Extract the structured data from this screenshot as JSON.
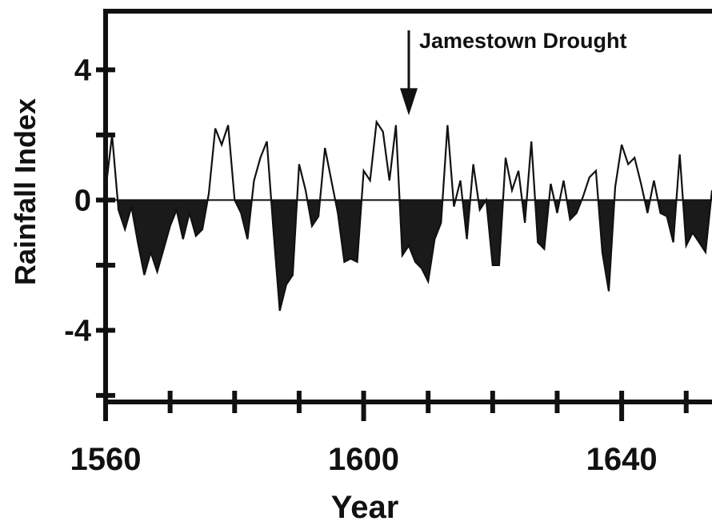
{
  "chart_data": {
    "type": "area",
    "title": "",
    "xlabel": "Year",
    "ylabel": "Rainfall Index",
    "xlim": [
      1560,
      1654
    ],
    "ylim": [
      -6.2,
      5.8
    ],
    "x_ticks": [
      1560,
      1600,
      1640
    ],
    "y_ticks": [
      4,
      0,
      -4
    ],
    "x_minor_ticks": [
      1570,
      1580,
      1590,
      1610,
      1620,
      1630,
      1650
    ],
    "y_minor_ticks": [
      2,
      -2,
      -6
    ],
    "zero_line": true,
    "fill_below_zero": true,
    "fill_color": "#1a1a1a",
    "line_color": "#111111",
    "annotation": {
      "text": "Jamestown Drought",
      "x": 1607,
      "y_arrow_tip": 2.6
    },
    "series": [
      {
        "x": [
          1560,
          1561,
          1562,
          1563,
          1564,
          1565,
          1566,
          1567,
          1568,
          1569,
          1570,
          1571,
          1572,
          1573,
          1574,
          1575,
          1576,
          1577,
          1578,
          1579,
          1580,
          1581,
          1582,
          1583,
          1584,
          1585,
          1586,
          1587,
          1588,
          1589,
          1590,
          1591,
          1592,
          1593,
          1594,
          1595,
          1596,
          1597,
          1598,
          1599,
          1600,
          1601,
          1602,
          1603,
          1604,
          1605,
          1606,
          1607,
          1608,
          1609,
          1610,
          1611,
          1612,
          1613,
          1614,
          1615,
          1616,
          1617,
          1618,
          1619,
          1620,
          1621,
          1622,
          1623,
          1624,
          1625,
          1626,
          1627,
          1628,
          1629,
          1630,
          1631,
          1632,
          1633,
          1634,
          1635,
          1636,
          1637,
          1638,
          1639,
          1640,
          1641,
          1642,
          1643,
          1644,
          1645,
          1646,
          1647,
          1648,
          1649,
          1650,
          1651,
          1652,
          1653,
          1654
        ],
        "values": [
          0.3,
          2.0,
          -0.3,
          -0.9,
          -0.2,
          -1.3,
          -2.3,
          -1.6,
          -2.2,
          -1.5,
          -0.8,
          -0.3,
          -1.2,
          -0.4,
          -1.1,
          -0.9,
          0.2,
          2.2,
          1.7,
          2.3,
          0.0,
          -0.4,
          -1.2,
          0.6,
          1.3,
          1.8,
          -0.9,
          -3.4,
          -2.6,
          -2.3,
          1.1,
          0.3,
          -0.8,
          -0.5,
          1.6,
          0.6,
          -0.4,
          -1.9,
          -1.8,
          -1.9,
          0.9,
          0.6,
          2.4,
          2.1,
          0.6,
          2.3,
          -1.7,
          -1.4,
          -1.9,
          -2.1,
          -2.5,
          -1.2,
          -0.7,
          2.3,
          -0.2,
          0.6,
          -1.2,
          1.1,
          -0.3,
          0.0,
          -2.0,
          -2.0,
          1.3,
          0.3,
          0.9,
          -0.7,
          1.8,
          -1.3,
          -1.5,
          0.5,
          -0.4,
          0.6,
          -0.6,
          -0.4,
          0.1,
          0.7,
          0.9,
          -1.6,
          -2.8,
          0.4,
          1.7,
          1.1,
          1.3,
          0.5,
          -0.4,
          0.6,
          -0.4,
          -0.5,
          -1.3,
          1.4,
          -1.4,
          -1.0,
          -1.3,
          -1.6,
          0.3
        ]
      }
    ]
  }
}
